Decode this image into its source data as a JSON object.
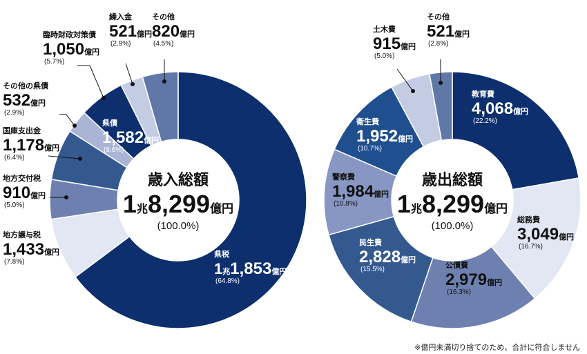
{
  "colors": {
    "navy": "#0d2f6e",
    "blue": "#1f4f8f",
    "mid_blue": "#34598f",
    "steel_blue": "#5f78a8",
    "slate": "#6d80af",
    "periwinkle": "#8796c2",
    "lavender": "#aab5d6",
    "light_lavender": "#c4cce3",
    "pale": "#e3e7f3"
  },
  "chart_data": [
    {
      "type": "pie",
      "title": "歳入総額",
      "total": {
        "big_prefix": "1",
        "small_unit": "兆",
        "big_value": "8,299",
        "unit": "億円",
        "pct": "(100.0%)"
      },
      "slices": [
        {
          "key": "kenzei",
          "label": "県税",
          "value": 11853,
          "big_prefix": "1",
          "small_unit": "兆",
          "big": "1,853",
          "unit": "億円",
          "pct": "(64.8%)",
          "color": "#0d2f6e"
        },
        {
          "key": "jouyozei",
          "label": "地方譲与税",
          "value": 1433,
          "big": "1,433",
          "unit": "億円",
          "pct": "(7.8%)",
          "color": "#e3e7f3"
        },
        {
          "key": "koufuzei",
          "label": "地方交付税",
          "value": 910,
          "big": "910",
          "unit": "億円",
          "pct": "(5.0%)",
          "color": "#6d80af"
        },
        {
          "key": "kokko",
          "label": "国庫支出金",
          "value": 1178,
          "big": "1,178",
          "unit": "億円",
          "pct": "(6.4%)",
          "color": "#34598f"
        },
        {
          "key": "sonotakensai",
          "label": "その他の県債",
          "value": 532,
          "big": "532",
          "unit": "億円",
          "pct": "(2.9%)",
          "color": "#aab5d6"
        },
        {
          "key": "rinji",
          "label": "臨時財政対策債",
          "value": 1050,
          "big": "1,050",
          "unit": "億円",
          "pct": "(5.7%)",
          "color": "#0d2f6e"
        },
        {
          "key": "kurikoshi",
          "label": "繰入金",
          "value": 521,
          "big": "521",
          "unit": "億円",
          "pct": "(2.9%)",
          "color": "#c4cce3"
        },
        {
          "key": "sonota",
          "label": "その他",
          "value": 820,
          "big": "820",
          "unit": "億円",
          "pct": "(4.5%)",
          "color": "#5f78a8"
        }
      ],
      "group_label": {
        "label": "県債",
        "big": "1,582",
        "unit": "億円",
        "pct": "(8.6%)"
      }
    },
    {
      "type": "pie",
      "title": "歳出総額",
      "total": {
        "big_prefix": "1",
        "small_unit": "兆",
        "big_value": "8,299",
        "unit": "億円",
        "pct": "(100.0%)"
      },
      "slices": [
        {
          "key": "kyouiku",
          "label": "教育費",
          "value": 4068,
          "big": "4,068",
          "unit": "億円",
          "pct": "(22.2%)",
          "color": "#0d2f6e"
        },
        {
          "key": "soumu",
          "label": "総務費",
          "value": 3049,
          "big": "3,049",
          "unit": "億円",
          "pct": "(16.7%)",
          "color": "#e3e7f3"
        },
        {
          "key": "kousai",
          "label": "公債費",
          "value": 2979,
          "big": "2,979",
          "unit": "億円",
          "pct": "(16.3%)",
          "color": "#6d80af"
        },
        {
          "key": "minsei",
          "label": "民生費",
          "value": 2828,
          "big": "2,828",
          "unit": "億円",
          "pct": "(15.5%)",
          "color": "#34598f"
        },
        {
          "key": "keisatsu",
          "label": "警察費",
          "value": 1984,
          "big": "1,984",
          "unit": "億円",
          "pct": "(10.8%)",
          "color": "#8796c2"
        },
        {
          "key": "eisei",
          "label": "衛生費",
          "value": 1952,
          "big": "1,952",
          "unit": "億円",
          "pct": "(10.7%)",
          "color": "#1f4f8f"
        },
        {
          "key": "doboku",
          "label": "土木費",
          "value": 915,
          "big": "915",
          "unit": "億円",
          "pct": "(5.0%)",
          "color": "#c4cce3"
        },
        {
          "key": "sonota2",
          "label": "その他",
          "value": 521,
          "big": "521",
          "unit": "億円",
          "pct": "(2.8%)",
          "color": "#5f78a8"
        }
      ]
    }
  ],
  "footnote": "※億円未満切り捨てのため、合計に符合しません"
}
